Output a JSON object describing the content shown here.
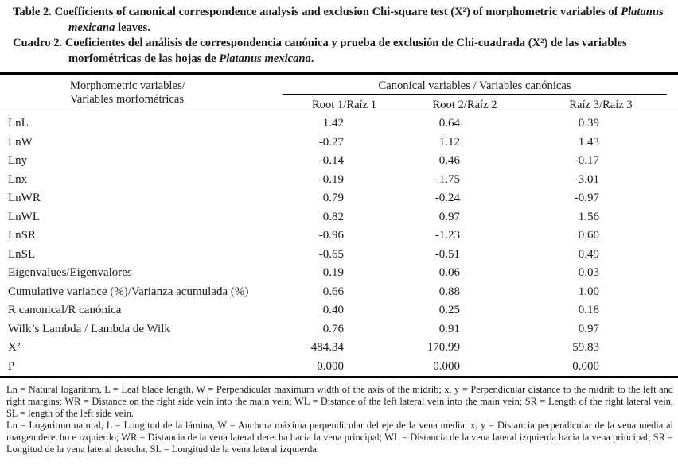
{
  "titles": {
    "en": {
      "label": "Table 2.",
      "before": " Coefficients of canonical correspondence analysis and exclusion Chi-square test (Χ²) of morphometric variables of ",
      "species": "Platanus mexicana",
      "after": " leaves."
    },
    "es": {
      "label": "Cuadro 2.",
      "before": " Coeficientes del análisis de correspondencia canónica y prueba de exclusión de Chi-cuadrada (Χ²) de las variables morfométricas de las hojas de ",
      "species": "Platanus mexicana",
      "after": "."
    }
  },
  "table": {
    "row_header_line1": "Morphometric variables/",
    "row_header_line2": "Variables morfométricas",
    "group_header": "Canonical variables / Variables canónicas",
    "columns": [
      "Root 1/Raíz 1",
      "Root 2/Raíz 2",
      "Raíz 3/Raíz 3"
    ],
    "rows": [
      {
        "label": "LnL",
        "values": [
          "1.42",
          "0.64",
          "0.39"
        ]
      },
      {
        "label": "LnW",
        "values": [
          "-0.27",
          "1.12",
          "1.43"
        ]
      },
      {
        "label": "Lny",
        "values": [
          "-0.14",
          "0.46",
          "-0.17"
        ]
      },
      {
        "label": "Lnx",
        "values": [
          "-0.19",
          "-1.75",
          "-3.01"
        ]
      },
      {
        "label": "LnWR",
        "values": [
          "0.79",
          "-0.24",
          "-0.97"
        ]
      },
      {
        "label": "LnWL",
        "values": [
          "0.82",
          "0.97",
          "1.56"
        ]
      },
      {
        "label": "LnSR",
        "values": [
          "-0.96",
          "-1.23",
          "0.60"
        ]
      },
      {
        "label": "LnSL",
        "values": [
          "-0.65",
          "-0.51",
          "0.49"
        ]
      },
      {
        "label": "Eigenvalues/Eigenvalores",
        "values": [
          "0.19",
          "0.06",
          "0.03"
        ]
      },
      {
        "label": "Cumulative variance (%)/Varianza acumulada (%)",
        "values": [
          "0.66",
          "0.88",
          "1.00"
        ]
      },
      {
        "label": "R canonical/R canónica",
        "values": [
          "0.40",
          "0.25",
          "0.18"
        ]
      },
      {
        "label": "Wilk’s Lambda / Lambda de Wilk",
        "values": [
          "0.76",
          "0.91",
          "0.97"
        ]
      },
      {
        "label": "Χ²",
        "values": [
          "484.34",
          "170.99",
          "59.83"
        ]
      },
      {
        "label": "P",
        "values": [
          "0.000",
          "0.000",
          "0.000"
        ]
      }
    ]
  },
  "footnotes": {
    "en": "Ln = Natural logarithm, L = Leaf blade length, W = Perpendicular maximum width of the axis of the midrib; x, y = Perpendicular distance to the midrib to the left and right margins; WR = Distance on the right side vein into the main vein; WL = Distance of the left lateral vein into the main vein; SR = Length of the right lateral vein, SL = length of the left side vein.",
    "es": "Ln = Logaritmo natural, L = Longitud de la lámina, W = Anchura máxima perpendicular del eje de la vena media; x, y = Distancia perpendicular de la vena media al margen derecho e izquierdo; WR = Distancia de la vena lateral derecha hacia la vena principal; WL = Distancia de la vena lateral izquierda hacia la vena principal; SR = Longitud de la vena lateral derecha, SL = Longitud de la vena lateral izquierda."
  }
}
